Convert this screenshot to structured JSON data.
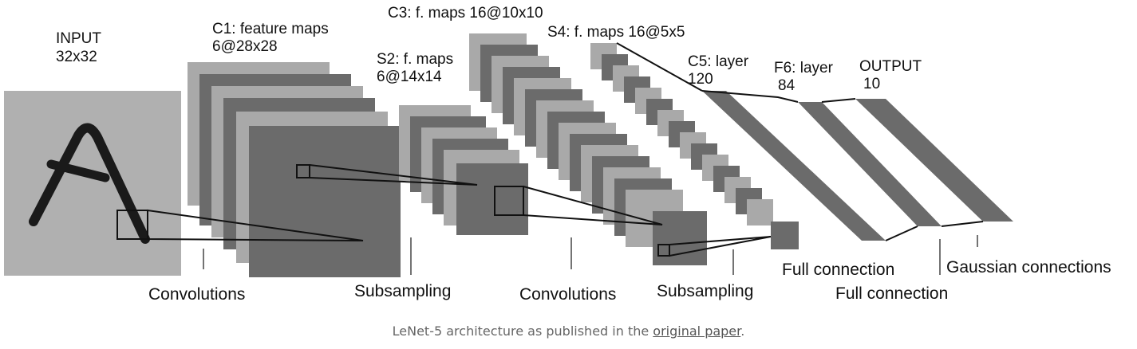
{
  "labels": {
    "input_line1": "INPUT",
    "input_line2": "32x32",
    "c1_line1": "C1: feature maps",
    "c1_line2": "6@28x28",
    "s2_line1": "S2: f. maps",
    "s2_line2": "6@14x14",
    "c3_line1": "C3: f. maps 16@10x10",
    "s4_line1": "S4: f. maps 16@5x5",
    "c5_line1": "C5: layer",
    "c5_line2": "120",
    "f6_line1": "F6: layer",
    "f6_line2": "84",
    "output_line1": "OUTPUT",
    "output_line2": "10"
  },
  "operations": {
    "conv1": "Convolutions",
    "sub1": "Subsampling",
    "conv2": "Convolutions",
    "sub2": "Subsampling",
    "full1": "Full connection",
    "full2": "Full connection",
    "gauss": "Gaussian connections"
  },
  "caption": {
    "before": "LeNet-5 architecture as published in the ",
    "link": "original paper",
    "after": "."
  },
  "colors": {
    "dark_map": "#6b6b6b",
    "light_map": "#a9a9a9",
    "input_bg": "#b0b0b0",
    "stroke": "#111111"
  }
}
